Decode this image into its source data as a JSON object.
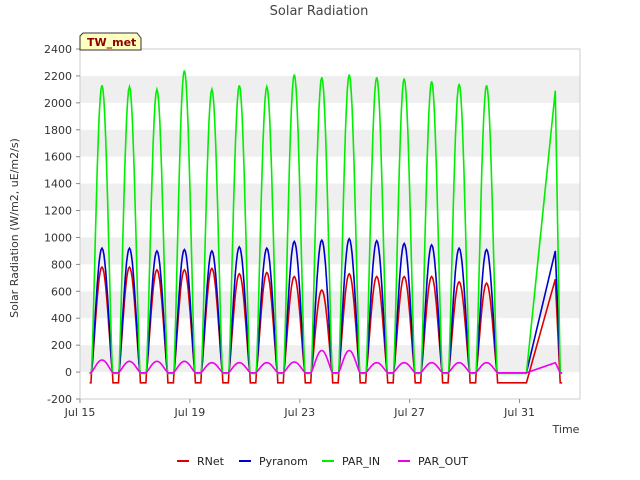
{
  "chart_data": {
    "type": "line",
    "title": "Solar Radiation",
    "xlabel": "Time",
    "ylabel": "Solar Radiation (W/m2, uE/m2/s)",
    "badge": "TW_met",
    "ylim": [
      -200,
      2400
    ],
    "yticks": [
      -200,
      0,
      200,
      400,
      600,
      800,
      1000,
      1200,
      1400,
      1600,
      1800,
      2000,
      2200,
      2400
    ],
    "xlim": [
      15,
      33.2
    ],
    "xticks": [
      {
        "value": 15,
        "label": "Jul 15"
      },
      {
        "value": 19,
        "label": "Jul 19"
      },
      {
        "value": 23,
        "label": "Jul 23"
      },
      {
        "value": 27,
        "label": "Jul 27"
      },
      {
        "value": 31,
        "label": "Jul 31"
      }
    ],
    "grid": "horizontal bands",
    "legend_position": "bottom",
    "days": [
      15.8,
      16.8,
      17.8,
      18.8,
      19.8,
      20.8,
      21.8,
      22.8,
      23.8,
      24.8,
      25.8,
      26.8,
      27.8,
      28.8,
      29.8,
      30.8
    ],
    "series": [
      {
        "name": "RNet",
        "color": "#dd0000",
        "night": -80,
        "peaks": [
          780,
          780,
          760,
          760,
          770,
          730,
          740,
          710,
          610,
          730,
          710,
          710,
          710,
          670,
          660,
          0
        ],
        "final_peak": 690,
        "final_x": 32.3
      },
      {
        "name": "Pyranom",
        "color": "#0000cc",
        "night": -5,
        "peaks": [
          920,
          920,
          900,
          910,
          900,
          930,
          920,
          970,
          980,
          990,
          975,
          955,
          945,
          920,
          910,
          0
        ],
        "final_peak": 900,
        "final_x": 32.3
      },
      {
        "name": "PAR_IN",
        "color": "#00ee00",
        "night": -10,
        "peaks": [
          2130,
          2120,
          2100,
          2240,
          2100,
          2130,
          2120,
          2210,
          2190,
          2210,
          2190,
          2180,
          2160,
          2140,
          2130,
          0
        ],
        "final_peak": 2090,
        "final_x": 32.3
      },
      {
        "name": "PAR_OUT",
        "color": "#ee00ee",
        "night": -5,
        "peaks": [
          90,
          80,
          80,
          80,
          70,
          70,
          70,
          75,
          160,
          160,
          70,
          70,
          70,
          70,
          70,
          0
        ],
        "final_peak": 70,
        "final_x": 32.3
      }
    ]
  }
}
